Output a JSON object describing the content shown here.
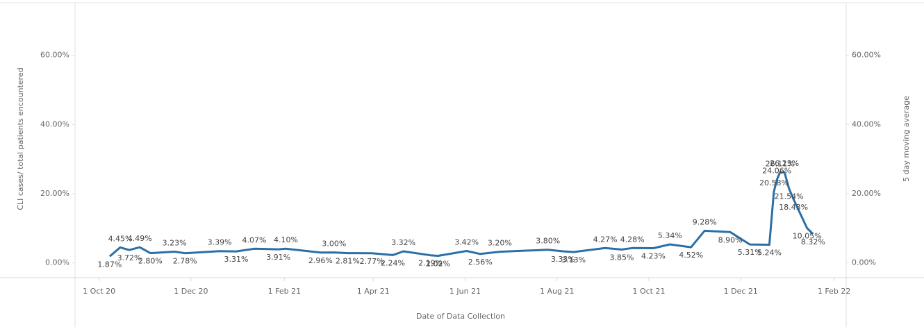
{
  "chart_data": {
    "type": "line",
    "x_label": "Date of Data Collection",
    "y_label": "CLI cases/ total patients encountered",
    "y2_label": "5 day moving average",
    "x": [
      "2020-10-08",
      "2020-10-15",
      "2020-10-21",
      "2020-10-28",
      "2020-11-04",
      "2020-11-20",
      "2020-11-27",
      "2020-12-20",
      "2020-12-31",
      "2021-01-12",
      "2021-01-28",
      "2021-02-02",
      "2021-02-25",
      "2021-03-06",
      "2021-03-15",
      "2021-03-31",
      "2021-04-14",
      "2021-04-21",
      "2021-05-09",
      "2021-05-14",
      "2021-06-02",
      "2021-06-11",
      "2021-06-24",
      "2021-07-26",
      "2021-08-05",
      "2021-08-12",
      "2021-09-02",
      "2021-09-13",
      "2021-09-20",
      "2021-10-04",
      "2021-10-15",
      "2021-10-29",
      "2021-11-07",
      "2021-11-24",
      "2021-12-07",
      "2021-12-20",
      "2021-12-23",
      "2021-12-25",
      "2021-12-27",
      "2021-12-30",
      "2022-01-02",
      "2022-01-05",
      "2022-01-14",
      "2022-01-18"
    ],
    "series": [
      {
        "name": "CLI cases/ total patients encountered",
        "color": "#2b6fa6",
        "values": [
          1.87,
          4.45,
          3.72,
          4.49,
          2.8,
          3.23,
          2.78,
          3.39,
          3.31,
          4.07,
          3.91,
          4.1,
          2.96,
          3.0,
          2.81,
          2.77,
          2.24,
          3.32,
          2.19,
          2.02,
          3.42,
          2.56,
          3.2,
          3.8,
          3.33,
          3.13,
          4.27,
          3.85,
          4.28,
          4.23,
          5.34,
          4.52,
          9.28,
          8.9,
          5.31,
          5.24,
          20.58,
          24.06,
          26.11,
          26.23,
          21.54,
          18.43,
          10.05,
          8.32
        ],
        "value_labels": [
          "1.87%",
          "4.45%",
          "3.72%",
          "4.49%",
          "2.80%",
          "3.23%",
          "2.78%",
          "3.39%",
          "3.31%",
          "4.07%",
          "3.91%",
          "4.10%",
          "2.96%",
          "3.00%",
          "2.81%",
          "2.77%",
          "2.24%",
          "3.32%",
          "2.19%",
          "2.02%",
          "3.42%",
          "2.56%",
          "3.20%",
          "3.80%",
          "3.33%",
          "3.13%",
          "4.27%",
          "3.85%",
          "4.28%",
          "4.23%",
          "5.34%",
          "4.52%",
          "9.28%",
          "8.90%",
          "5.31%",
          "5.24%",
          "20.58%",
          "24.06%",
          "26.11%",
          "26.23%",
          "21.54%",
          "18.43%",
          "10.05%",
          "8.32%"
        ]
      }
    ],
    "xlim": [
      "2020-09-15",
      "2022-02-09"
    ],
    "xticks": [
      {
        "value": "2020-10-01",
        "label": "1 Oct 20"
      },
      {
        "value": "2020-12-01",
        "label": "1 Dec 20"
      },
      {
        "value": "2021-02-01",
        "label": "1 Feb 21"
      },
      {
        "value": "2021-04-01",
        "label": "1 Apr 21"
      },
      {
        "value": "2021-06-01",
        "label": "1 Jun 21"
      },
      {
        "value": "2021-08-01",
        "label": "1 Aug 21"
      },
      {
        "value": "2021-10-01",
        "label": "1 Oct 21"
      },
      {
        "value": "2021-12-01",
        "label": "1 Dec 21"
      },
      {
        "value": "2022-02-01",
        "label": "1 Feb 22"
      }
    ],
    "ylim": [
      -4.3,
      74
    ],
    "yticks": [
      {
        "value": 0,
        "label": "0.00%"
      },
      {
        "value": 20,
        "label": "20.00%"
      },
      {
        "value": 40,
        "label": "40.00%"
      },
      {
        "value": 60,
        "label": "60.00%"
      }
    ],
    "y2lim": [
      -4.3,
      74
    ],
    "y2ticks": [
      {
        "value": 0,
        "label": "0.00%"
      },
      {
        "value": 20,
        "label": "20.00%"
      },
      {
        "value": 40,
        "label": "40.00%"
      },
      {
        "value": 60,
        "label": "60.00%"
      }
    ]
  }
}
